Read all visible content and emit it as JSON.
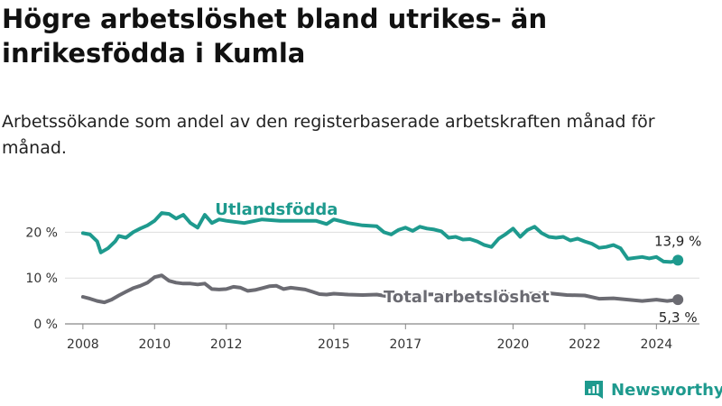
{
  "title": "Högre arbetslöshet bland utrikes- än inrikesfödda i Kumla",
  "subtitle": "Arbetssökande som andel av den registerbaserade arbetskraften månad för månad.",
  "brand": {
    "name": "Newsworthy",
    "color": "#1e9a8e",
    "icon": "newsworthy-logo-icon"
  },
  "chart_data": {
    "type": "line",
    "x_unit": "year",
    "xlim": [
      2007.5,
      2025.2
    ],
    "ylim": [
      0,
      25
    ],
    "y_ticks": [
      {
        "value": 0,
        "label": "0 %"
      },
      {
        "value": 10,
        "label": "10 %"
      },
      {
        "value": 20,
        "label": "20 %"
      }
    ],
    "x_ticks": [
      {
        "value": 2008,
        "label": "2008"
      },
      {
        "value": 2010,
        "label": "2010"
      },
      {
        "value": 2012,
        "label": "2012"
      },
      {
        "value": 2015,
        "label": "2015"
      },
      {
        "value": 2017,
        "label": "2017"
      },
      {
        "value": 2020,
        "label": "2020"
      },
      {
        "value": 2022,
        "label": "2022"
      },
      {
        "value": 2024,
        "label": "2024"
      }
    ],
    "grid": true,
    "series": [
      {
        "name": "Utlandsfödda",
        "color": "#1e9a8e",
        "end_label": "13,9 %",
        "points": [
          [
            2008.0,
            19.8
          ],
          [
            2008.2,
            19.5
          ],
          [
            2008.4,
            18.0
          ],
          [
            2008.5,
            15.6
          ],
          [
            2008.7,
            16.5
          ],
          [
            2008.9,
            18.0
          ],
          [
            2009.0,
            19.2
          ],
          [
            2009.2,
            18.8
          ],
          [
            2009.4,
            20.0
          ],
          [
            2009.6,
            20.8
          ],
          [
            2009.8,
            21.5
          ],
          [
            2010.0,
            22.5
          ],
          [
            2010.2,
            24.2
          ],
          [
            2010.4,
            24.0
          ],
          [
            2010.6,
            23.0
          ],
          [
            2010.8,
            23.8
          ],
          [
            2011.0,
            22.0
          ],
          [
            2011.2,
            21.0
          ],
          [
            2011.4,
            23.8
          ],
          [
            2011.6,
            22.0
          ],
          [
            2011.8,
            22.8
          ],
          [
            2012.0,
            22.5
          ],
          [
            2012.5,
            22.0
          ],
          [
            2013.0,
            22.8
          ],
          [
            2013.5,
            22.5
          ],
          [
            2014.0,
            22.5
          ],
          [
            2014.5,
            22.5
          ],
          [
            2014.8,
            21.8
          ],
          [
            2015.0,
            22.8
          ],
          [
            2015.4,
            22.0
          ],
          [
            2015.8,
            21.5
          ],
          [
            2016.2,
            21.3
          ],
          [
            2016.4,
            20.0
          ],
          [
            2016.6,
            19.5
          ],
          [
            2016.8,
            20.5
          ],
          [
            2017.0,
            21.0
          ],
          [
            2017.2,
            20.3
          ],
          [
            2017.4,
            21.2
          ],
          [
            2017.6,
            20.8
          ],
          [
            2017.8,
            20.6
          ],
          [
            2018.0,
            20.2
          ],
          [
            2018.2,
            18.8
          ],
          [
            2018.4,
            19.0
          ],
          [
            2018.6,
            18.4
          ],
          [
            2018.8,
            18.5
          ],
          [
            2019.0,
            18.0
          ],
          [
            2019.2,
            17.2
          ],
          [
            2019.4,
            16.8
          ],
          [
            2019.6,
            18.6
          ],
          [
            2019.8,
            19.6
          ],
          [
            2020.0,
            20.8
          ],
          [
            2020.2,
            19.0
          ],
          [
            2020.4,
            20.5
          ],
          [
            2020.6,
            21.2
          ],
          [
            2020.8,
            19.8
          ],
          [
            2021.0,
            19.0
          ],
          [
            2021.2,
            18.8
          ],
          [
            2021.4,
            19.0
          ],
          [
            2021.6,
            18.2
          ],
          [
            2021.8,
            18.6
          ],
          [
            2022.0,
            18.0
          ],
          [
            2022.2,
            17.5
          ],
          [
            2022.4,
            16.6
          ],
          [
            2022.6,
            16.8
          ],
          [
            2022.8,
            17.2
          ],
          [
            2023.0,
            16.5
          ],
          [
            2023.2,
            14.2
          ],
          [
            2023.4,
            14.4
          ],
          [
            2023.6,
            14.6
          ],
          [
            2023.8,
            14.3
          ],
          [
            2024.0,
            14.6
          ],
          [
            2024.2,
            13.6
          ],
          [
            2024.4,
            13.5
          ],
          [
            2024.6,
            13.9
          ]
        ]
      },
      {
        "name": "Total arbetslöshet",
        "color": "#6b6b72",
        "end_label": "5,3 %",
        "points": [
          [
            2008.0,
            5.9
          ],
          [
            2008.2,
            5.5
          ],
          [
            2008.4,
            5.0
          ],
          [
            2008.6,
            4.7
          ],
          [
            2008.8,
            5.3
          ],
          [
            2009.0,
            6.2
          ],
          [
            2009.2,
            7.0
          ],
          [
            2009.4,
            7.8
          ],
          [
            2009.6,
            8.3
          ],
          [
            2009.8,
            9.0
          ],
          [
            2010.0,
            10.2
          ],
          [
            2010.2,
            10.6
          ],
          [
            2010.4,
            9.4
          ],
          [
            2010.6,
            9.0
          ],
          [
            2010.8,
            8.8
          ],
          [
            2011.0,
            8.8
          ],
          [
            2011.2,
            8.6
          ],
          [
            2011.4,
            8.8
          ],
          [
            2011.6,
            7.6
          ],
          [
            2011.8,
            7.5
          ],
          [
            2012.0,
            7.6
          ],
          [
            2012.2,
            8.1
          ],
          [
            2012.4,
            7.9
          ],
          [
            2012.6,
            7.2
          ],
          [
            2012.8,
            7.4
          ],
          [
            2013.0,
            7.8
          ],
          [
            2013.2,
            8.2
          ],
          [
            2013.4,
            8.3
          ],
          [
            2013.6,
            7.6
          ],
          [
            2013.8,
            7.9
          ],
          [
            2014.0,
            7.7
          ],
          [
            2014.2,
            7.5
          ],
          [
            2014.4,
            7.0
          ],
          [
            2014.6,
            6.5
          ],
          [
            2014.8,
            6.4
          ],
          [
            2015.0,
            6.6
          ],
          [
            2015.4,
            6.4
          ],
          [
            2015.8,
            6.3
          ],
          [
            2016.2,
            6.4
          ],
          [
            2016.6,
            5.9
          ],
          [
            2017.0,
            6.0
          ],
          [
            2017.5,
            6.4
          ],
          [
            2018.0,
            6.5
          ],
          [
            2018.5,
            6.2
          ],
          [
            2019.0,
            6.4
          ],
          [
            2019.5,
            6.6
          ],
          [
            2020.0,
            6.4
          ],
          [
            2020.5,
            6.6
          ],
          [
            2021.0,
            6.7
          ],
          [
            2021.5,
            6.3
          ],
          [
            2022.0,
            6.2
          ],
          [
            2022.4,
            5.5
          ],
          [
            2022.8,
            5.6
          ],
          [
            2023.2,
            5.3
          ],
          [
            2023.6,
            5.0
          ],
          [
            2024.0,
            5.3
          ],
          [
            2024.3,
            5.0
          ],
          [
            2024.6,
            5.3
          ]
        ]
      }
    ]
  }
}
